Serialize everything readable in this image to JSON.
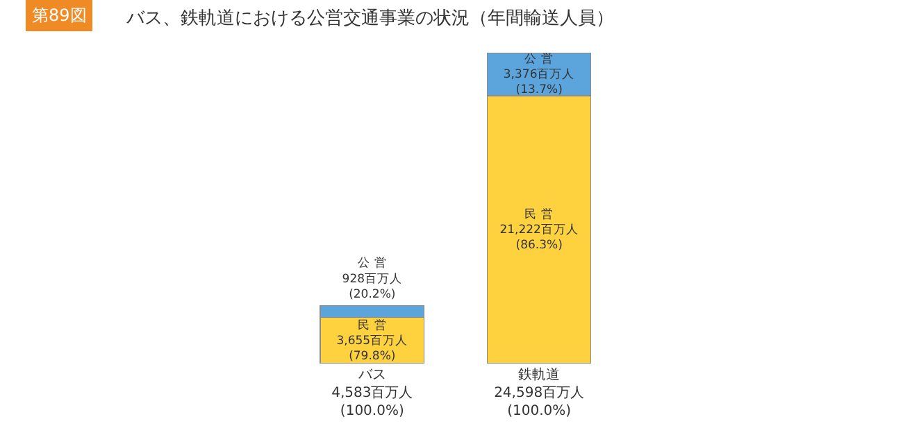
{
  "chart_data": {
    "type": "bar",
    "stacked": true,
    "title": "バス、鉄軌道における公営交通事業の状況（年間輸送人員）",
    "annotations": [
      "第89図"
    ],
    "categories": [
      "バス\n4,583百万人\n(100.0%)",
      "鉄軌道\n24,598百万人\n(100.0%)"
    ],
    "series": [
      {
        "color": "#fdd23e",
        "values": [
          3655,
          21222
        ],
        "value_labels": [
          "民 営\n3,655百万人\n(79.8%)",
          "民 営\n21,222百万人\n(86.3%)"
        ]
      },
      {
        "color": "#5ba4dc",
        "values": [
          928,
          3376
        ],
        "value_labels": [
          "公 営\n928百万人\n(20.2%)",
          "公 営\n3,376百万人\n(13.7%)"
        ]
      }
    ],
    "legend": false
  }
}
